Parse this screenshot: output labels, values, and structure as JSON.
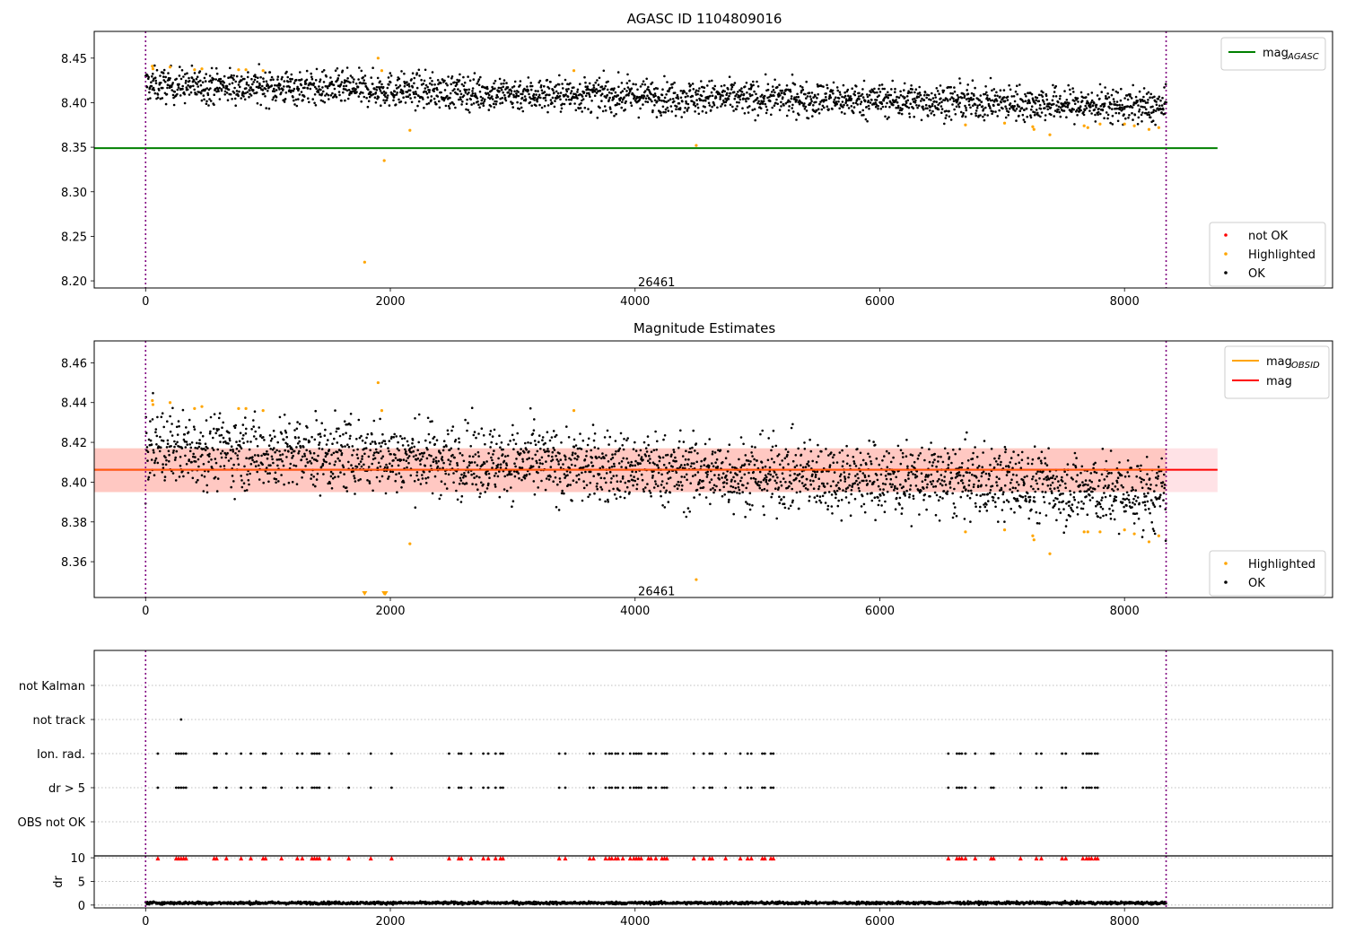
{
  "chart_data": [
    {
      "type": "scatter",
      "title": "AGASC ID 1104809016",
      "xlim": [
        -420,
        9700
      ],
      "ylim": [
        8.192,
        8.48
      ],
      "x_ticks": [
        0,
        2000,
        4000,
        6000,
        8000
      ],
      "y_ticks": [
        8.2,
        8.25,
        8.3,
        8.35,
        8.4,
        8.45
      ],
      "y_tick_labels": [
        "8.20",
        "8.25",
        "8.30",
        "8.35",
        "8.40",
        "8.45"
      ],
      "vlines": [
        0,
        8340
      ],
      "annotation": {
        "text": "26461",
        "x": 4000,
        "y": 8.198
      },
      "hline": {
        "name": "mag_AGASC",
        "y": 8.349,
        "x_range": [
          -420,
          8760
        ],
        "color": "#008000"
      },
      "legend_lines": [
        {
          "label": "mag",
          "sub": "AGASC",
          "color": "#008000"
        }
      ],
      "legend_points": [
        {
          "label": "not OK",
          "color": "#ff0000"
        },
        {
          "label": "Highlighted",
          "color": "#ffa500"
        },
        {
          "label": "OK",
          "color": "#000000"
        }
      ],
      "series": [
        {
          "name": "OK",
          "color": "#000000",
          "x_range": [
            0,
            8340
          ],
          "trend": [
            [
              0,
              8.42
            ],
            [
              900,
              8.418
            ],
            [
              1900,
              8.415
            ],
            [
              3000,
              8.41
            ],
            [
              4500,
              8.406
            ],
            [
              6000,
              8.403
            ],
            [
              7000,
              8.4
            ],
            [
              8340,
              8.395
            ]
          ],
          "spread": 0.0095
        },
        {
          "name": "Highlighted",
          "color": "#ffa500",
          "points": [
            [
              55,
              8.441
            ],
            [
              60,
              8.438
            ],
            [
              200,
              8.44
            ],
            [
              400,
              8.437
            ],
            [
              460,
              8.438
            ],
            [
              760,
              8.437
            ],
            [
              820,
              8.437
            ],
            [
              960,
              8.436
            ],
            [
              1790,
              8.221
            ],
            [
              1900,
              8.45
            ],
            [
              1930,
              8.436
            ],
            [
              1950,
              8.335
            ],
            [
              2160,
              8.369
            ],
            [
              3500,
              8.436
            ],
            [
              4500,
              8.352
            ],
            [
              6700,
              8.375
            ],
            [
              7020,
              8.377
            ],
            [
              7250,
              8.373
            ],
            [
              7260,
              8.37
            ],
            [
              7390,
              8.364
            ],
            [
              7670,
              8.374
            ],
            [
              7700,
              8.372
            ],
            [
              7800,
              8.376
            ],
            [
              8000,
              8.376
            ],
            [
              8080,
              8.374
            ],
            [
              8200,
              8.37
            ],
            [
              8280,
              8.372
            ]
          ]
        },
        {
          "name": "not OK",
          "color": "#ff0000",
          "points": []
        }
      ]
    },
    {
      "type": "scatter",
      "title": "Magnitude Estimates",
      "xlim": [
        -420,
        9700
      ],
      "ylim": [
        8.342,
        8.471
      ],
      "x_ticks": [
        0,
        2000,
        4000,
        6000,
        8000
      ],
      "y_ticks": [
        8.36,
        8.38,
        8.4,
        8.42,
        8.44,
        8.46
      ],
      "y_tick_labels": [
        "8.36",
        "8.38",
        "8.40",
        "8.42",
        "8.44",
        "8.46"
      ],
      "vlines": [
        0,
        8340
      ],
      "annotation": {
        "text": "26461",
        "x": 4000,
        "y": 8.345
      },
      "bands": [
        {
          "name": "mag_OBSID band",
          "y_range": [
            8.395,
            8.417
          ],
          "x_range": [
            -420,
            8340
          ],
          "color": "#ffa07a",
          "opacity": 0.45
        },
        {
          "name": "mag band",
          "y_range": [
            8.395,
            8.417
          ],
          "x_range": [
            -420,
            8760
          ],
          "color": "#ffb6c1",
          "opacity": 0.4
        }
      ],
      "hline": {
        "name": "mag",
        "y": 8.4062,
        "x_range": [
          -420,
          8760
        ],
        "color": "#ff0000"
      },
      "legend_lines": [
        {
          "label": "mag",
          "sub": "OBSID",
          "color": "#ffa500"
        },
        {
          "label": "mag",
          "sub": "",
          "color": "#ff0000"
        }
      ],
      "legend_points": [
        {
          "label": "Highlighted",
          "color": "#ffa500"
        },
        {
          "label": "OK",
          "color": "#000000"
        }
      ],
      "series": [
        {
          "name": "OK",
          "color": "#000000",
          "x_range": [
            0,
            8340
          ],
          "trend": [
            [
              0,
              8.418
            ],
            [
              900,
              8.415
            ],
            [
              1900,
              8.413
            ],
            [
              3000,
              8.41
            ],
            [
              4500,
              8.405
            ],
            [
              6000,
              8.402
            ],
            [
              7000,
              8.4
            ],
            [
              8340,
              8.393
            ]
          ],
          "spread": 0.009
        },
        {
          "name": "Highlighted",
          "color": "#ffa500",
          "points": [
            [
              55,
              8.441
            ],
            [
              60,
              8.439
            ],
            [
              200,
              8.44
            ],
            [
              400,
              8.437
            ],
            [
              460,
              8.438
            ],
            [
              760,
              8.437
            ],
            [
              820,
              8.437
            ],
            [
              960,
              8.436
            ],
            [
              1900,
              8.45
            ],
            [
              1930,
              8.436
            ],
            [
              2160,
              8.369
            ],
            [
              3500,
              8.436
            ],
            [
              4500,
              8.351
            ],
            [
              6700,
              8.375
            ],
            [
              7020,
              8.376
            ],
            [
              7250,
              8.373
            ],
            [
              7260,
              8.371
            ],
            [
              7390,
              8.364
            ],
            [
              7670,
              8.375
            ],
            [
              7700,
              8.375
            ],
            [
              7800,
              8.375
            ],
            [
              8000,
              8.376
            ],
            [
              8080,
              8.374
            ],
            [
              8200,
              8.37
            ],
            [
              8280,
              8.373
            ]
          ]
        }
      ]
    },
    {
      "type": "scatter",
      "title": "",
      "xlim": [
        -420,
        9700
      ],
      "x_ticks": [
        0,
        2000,
        4000,
        6000,
        8000
      ],
      "vlines": [
        0,
        8340
      ],
      "flags": [
        "not Kalman",
        "not track",
        "Ion. rad.",
        "dr > 5",
        "OBS not OK"
      ],
      "flag_points": {
        "not track": [
          290
        ],
        "Ion. rad.": [
          100,
          250,
          270,
          290,
          310,
          330,
          560,
          580,
          660,
          780,
          860,
          960,
          980,
          1110,
          1240,
          1280,
          1360,
          1380,
          1400,
          1420,
          1500,
          1660,
          1840,
          2010,
          2480,
          2560,
          2580,
          2660,
          2760,
          2800,
          2860,
          2900,
          2920,
          3380,
          3430,
          3630,
          3660,
          3760,
          3790,
          3810,
          3840,
          3860,
          3900,
          3960,
          3990,
          4010,
          4030,
          4050,
          4110,
          4130,
          4170,
          4220,
          4240,
          4260,
          4480,
          4560,
          4610,
          4630,
          4740,
          4860,
          4920,
          4950,
          5040,
          5060,
          5110,
          5130,
          6560,
          6630,
          6650,
          6670,
          6700,
          6780,
          6910,
          6930,
          7150,
          7280,
          7320,
          7490,
          7520,
          7660,
          7690,
          7710,
          7730,
          7760,
          7780
        ],
        "dr > 5": [
          100,
          250,
          270,
          290,
          310,
          330,
          560,
          580,
          660,
          780,
          860,
          960,
          980,
          1110,
          1240,
          1280,
          1360,
          1380,
          1400,
          1420,
          1500,
          1660,
          1840,
          2010,
          2480,
          2560,
          2580,
          2660,
          2760,
          2800,
          2860,
          2900,
          2920,
          3380,
          3430,
          3630,
          3660,
          3760,
          3790,
          3810,
          3840,
          3860,
          3900,
          3960,
          3990,
          4010,
          4030,
          4050,
          4110,
          4130,
          4170,
          4220,
          4240,
          4260,
          4480,
          4560,
          4610,
          4630,
          4740,
          4860,
          4920,
          4950,
          5040,
          5060,
          5110,
          5130,
          6560,
          6630,
          6650,
          6670,
          6700,
          6780,
          6910,
          6930,
          7150,
          7280,
          7320,
          7490,
          7520,
          7660,
          7690,
          7710,
          7730,
          7760,
          7780
        ],
        "not Kalman": [],
        "OBS not OK": []
      }
    },
    {
      "type": "scatter",
      "title": "",
      "ylabel": "dr",
      "xlim": [
        -420,
        9700
      ],
      "ylim": [
        -0.6,
        10.4
      ],
      "x_ticks": [
        0,
        2000,
        4000,
        6000,
        8000
      ],
      "y_ticks": [
        0,
        5,
        10
      ],
      "y_tick_labels": [
        "0",
        "5",
        "10"
      ],
      "vlines": [
        0,
        8340
      ],
      "series": [
        {
          "name": "dr",
          "color": "#000000",
          "x_range": [
            0,
            8340
          ],
          "mean": 0.45,
          "spread": 0.25
        },
        {
          "name": "dr > 10 (clipped)",
          "color": "#ff0000",
          "marker": "triangle",
          "y": 9.8,
          "x_from_flag": "dr > 5"
        }
      ]
    }
  ]
}
